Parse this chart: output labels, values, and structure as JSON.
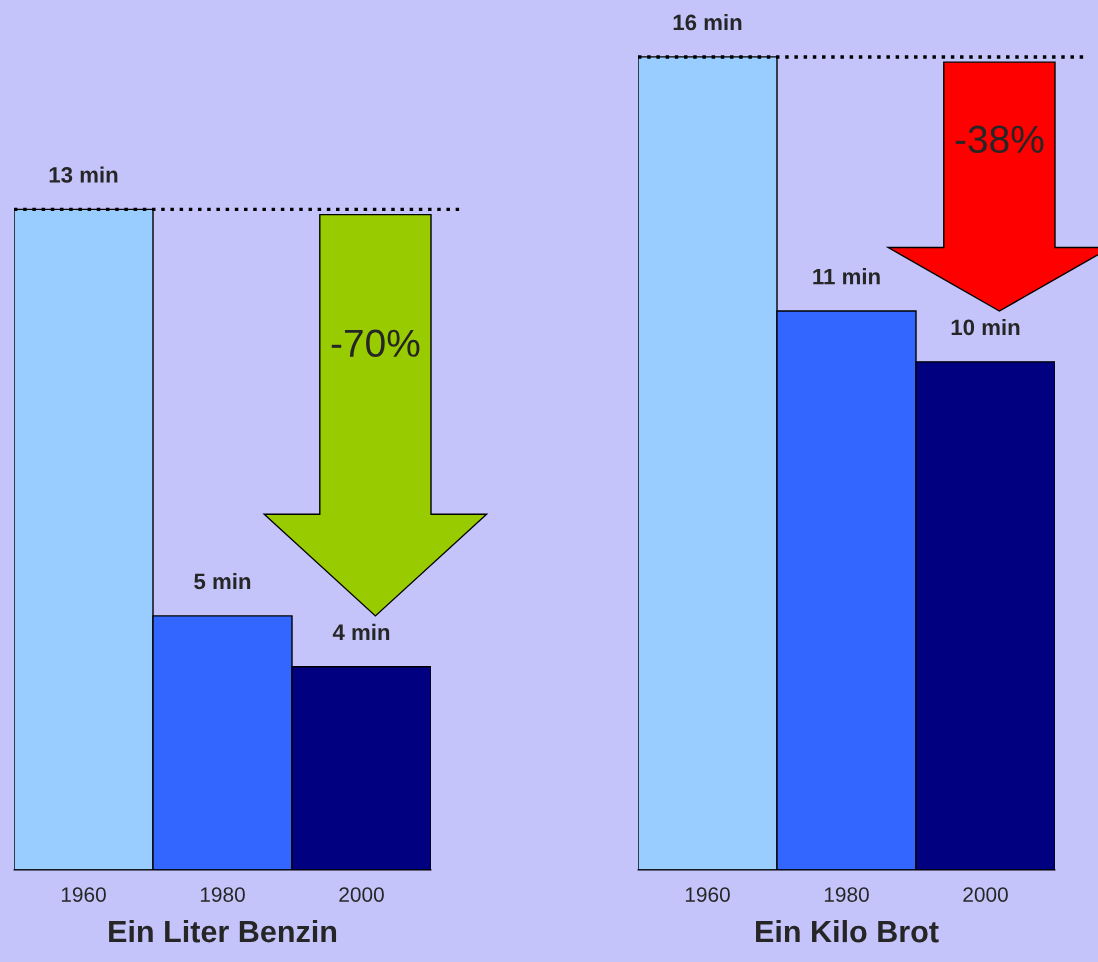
{
  "chart_data": [
    {
      "type": "bar",
      "xlabel": "Ein Liter Benzin",
      "categories": [
        "1960",
        "1980",
        "2000"
      ],
      "values": [
        13,
        5,
        4
      ],
      "colors": [
        "#99ccff",
        "#3366ff",
        "#000080"
      ],
      "value_labels": [
        "13 min",
        "5 min",
        "4 min"
      ],
      "ref_lines": [
        {
          "axis": "y",
          "value": 13,
          "color": "#000000",
          "line_style": "dotted"
        }
      ],
      "annotations": [
        "-70%"
      ],
      "tick_labels": "x"
    },
    {
      "type": "bar",
      "xlabel": "Ein Kilo Brot",
      "categories": [
        "1960",
        "1980",
        "2000"
      ],
      "values": [
        16,
        11,
        10
      ],
      "colors": [
        "#99ccff",
        "#3366ff",
        "#000080"
      ],
      "value_labels": [
        "16 min",
        "11 min",
        "10 min"
      ],
      "ref_lines": [
        {
          "axis": "y",
          "value": 16,
          "color": "#000000",
          "line_style": "dotted"
        }
      ],
      "annotations": [
        "-38%"
      ],
      "tick_labels": "x"
    }
  ]
}
